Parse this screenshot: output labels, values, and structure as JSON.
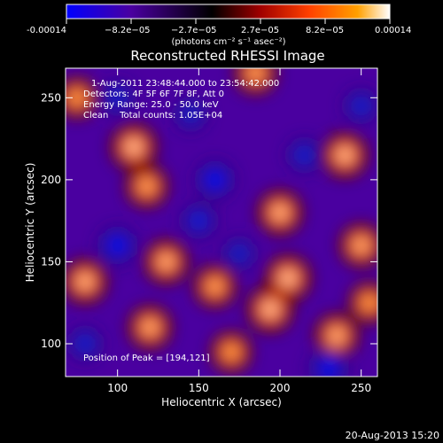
{
  "colorbar": {
    "ticks": [
      "-0.00014",
      "−8.2e−05",
      "−2.7e−05",
      "2.7e−05",
      "8.2e−05",
      "0.00014"
    ],
    "unit_label": "(photons cm⁻² s⁻¹ asec⁻²)"
  },
  "chart_data": {
    "type": "heatmap",
    "title": "Reconstructed RHESSI Image",
    "xlabel": "Heliocentric X (arcsec)",
    "ylabel": "Heliocentric Y (arcsec)",
    "xlim": [
      68,
      260
    ],
    "ylim": [
      80,
      268
    ],
    "xticks": [
      100,
      150,
      200,
      250
    ],
    "yticks": [
      100,
      150,
      200,
      250
    ],
    "value_range": [
      -0.00014,
      0.00014
    ],
    "colormap": [
      "#0000ff",
      "#4a00a0",
      "#000000",
      "#a00000",
      "#ff4000",
      "#ffa000",
      "#ffffff"
    ],
    "annotations": [
      "1-Aug-2011 23:48:44.000 to 23:54:42.000",
      "Detectors: 4F 5F 6F 7F 8F, Att 0",
      "Energy Range: 25.0 - 50.0 keV",
      "Clean    Total counts: 1.05E+04",
      "Position of Peak = [194,121]"
    ],
    "peak": [
      194,
      121
    ],
    "blobs": [
      {
        "x": 110,
        "y": 220,
        "v": 1.0
      },
      {
        "x": 118,
        "y": 196,
        "v": 0.7
      },
      {
        "x": 80,
        "y": 138,
        "v": 0.9
      },
      {
        "x": 75,
        "y": 250,
        "v": 0.6
      },
      {
        "x": 130,
        "y": 150,
        "v": 0.85
      },
      {
        "x": 120,
        "y": 110,
        "v": 0.8
      },
      {
        "x": 160,
        "y": 135,
        "v": 0.7
      },
      {
        "x": 185,
        "y": 265,
        "v": 0.7
      },
      {
        "x": 200,
        "y": 180,
        "v": 0.9
      },
      {
        "x": 205,
        "y": 140,
        "v": 1.0
      },
      {
        "x": 194,
        "y": 121,
        "v": 1.0
      },
      {
        "x": 240,
        "y": 215,
        "v": 0.95
      },
      {
        "x": 250,
        "y": 160,
        "v": 0.8
      },
      {
        "x": 235,
        "y": 105,
        "v": 0.85
      },
      {
        "x": 255,
        "y": 125,
        "v": 0.6
      },
      {
        "x": 170,
        "y": 95,
        "v": 0.6
      },
      {
        "x": 100,
        "y": 160,
        "v": -1.0
      },
      {
        "x": 100,
        "y": 250,
        "v": -0.6
      },
      {
        "x": 145,
        "y": 240,
        "v": -0.5
      },
      {
        "x": 160,
        "y": 200,
        "v": -1.0
      },
      {
        "x": 215,
        "y": 215,
        "v": -0.6
      },
      {
        "x": 150,
        "y": 175,
        "v": -0.7
      },
      {
        "x": 80,
        "y": 100,
        "v": -0.6
      },
      {
        "x": 230,
        "y": 85,
        "v": -1.0
      },
      {
        "x": 175,
        "y": 155,
        "v": -0.5
      },
      {
        "x": 250,
        "y": 245,
        "v": -0.6
      }
    ]
  },
  "footer": {
    "timestamp": "20-Aug-2013 15:20"
  }
}
